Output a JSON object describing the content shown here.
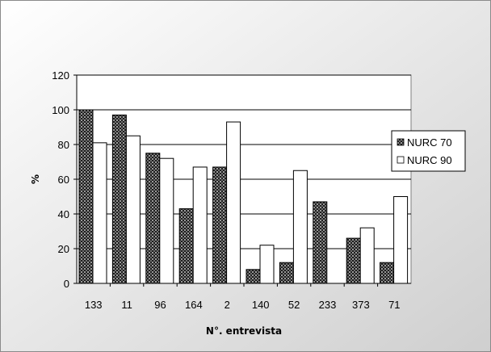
{
  "chart_data": {
    "type": "bar",
    "categories": [
      "133",
      "11",
      "96",
      "164",
      "2",
      "140",
      "52",
      "233",
      "373",
      "71"
    ],
    "series": [
      {
        "name": "NURC 70",
        "values": [
          100,
          97,
          75,
          43,
          67,
          8,
          12,
          47,
          26,
          12
        ]
      },
      {
        "name": "NURC 90",
        "values": [
          81,
          85,
          72,
          67,
          93,
          22,
          65,
          0,
          32,
          50
        ]
      }
    ],
    "xlabel": "N°. entrevista",
    "ylabel": "%",
    "ylim": [
      0,
      120
    ],
    "yticks": [
      0,
      20,
      40,
      60,
      80,
      100,
      120
    ],
    "grid": true,
    "legend_position": "right",
    "colors": {
      "plot_background": "#ffffff",
      "series_1_fill": "#2a2a2a",
      "series_2_fill": "#ffffff",
      "grid": "#000000"
    }
  }
}
